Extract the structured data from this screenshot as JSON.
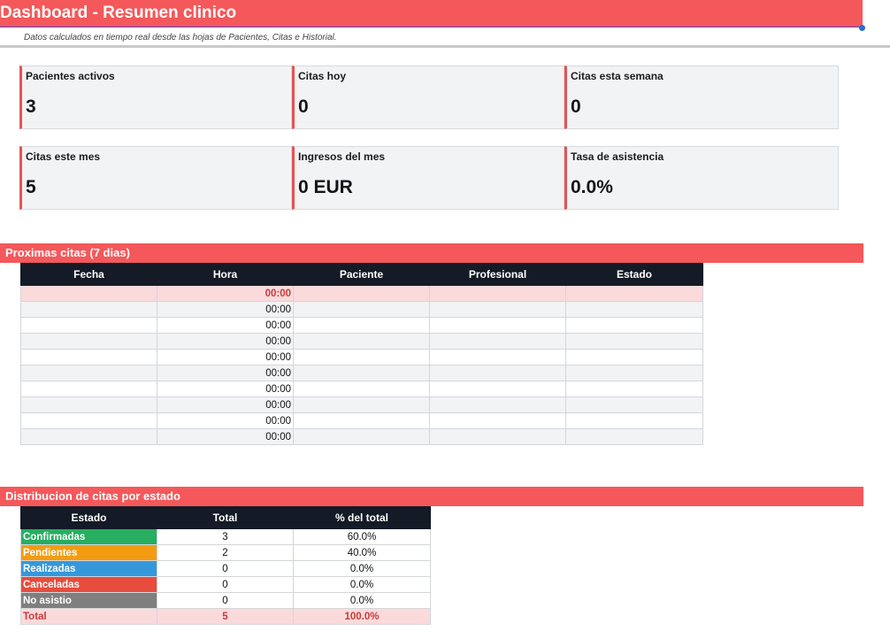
{
  "header": {
    "title": "Dashboard - Resumen clinico",
    "subtitle": "Datos calculados en tiempo real desde las hojas de Pacientes, Citas e Historial."
  },
  "kpis": [
    {
      "label": "Pacientes activos",
      "value": "3"
    },
    {
      "label": "Citas hoy",
      "value": "0"
    },
    {
      "label": "Citas esta semana",
      "value": "0"
    },
    {
      "label": "Citas este mes",
      "value": "5"
    },
    {
      "label": "Ingresos del mes",
      "value": "0 EUR"
    },
    {
      "label": "Tasa de asistencia",
      "value": "0.0%"
    }
  ],
  "upcoming": {
    "title": "Proximas citas (7 dias)",
    "columns": [
      "Fecha",
      "Hora",
      "Paciente",
      "Profesional",
      "Estado"
    ],
    "rows": [
      {
        "fecha": "",
        "hora": "00:00",
        "paciente": "",
        "profesional": "",
        "estado": ""
      },
      {
        "fecha": "",
        "hora": "00:00",
        "paciente": "",
        "profesional": "",
        "estado": ""
      },
      {
        "fecha": "",
        "hora": "00:00",
        "paciente": "",
        "profesional": "",
        "estado": ""
      },
      {
        "fecha": "",
        "hora": "00:00",
        "paciente": "",
        "profesional": "",
        "estado": ""
      },
      {
        "fecha": "",
        "hora": "00:00",
        "paciente": "",
        "profesional": "",
        "estado": ""
      },
      {
        "fecha": "",
        "hora": "00:00",
        "paciente": "",
        "profesional": "",
        "estado": ""
      },
      {
        "fecha": "",
        "hora": "00:00",
        "paciente": "",
        "profesional": "",
        "estado": ""
      },
      {
        "fecha": "",
        "hora": "00:00",
        "paciente": "",
        "profesional": "",
        "estado": ""
      },
      {
        "fecha": "",
        "hora": "00:00",
        "paciente": "",
        "profesional": "",
        "estado": ""
      },
      {
        "fecha": "",
        "hora": "00:00",
        "paciente": "",
        "profesional": "",
        "estado": ""
      }
    ]
  },
  "distribution": {
    "title": "Distribucion de citas por estado",
    "columns": [
      "Estado",
      "Total",
      "% del total"
    ],
    "rows": [
      {
        "estado": "Confirmadas",
        "total": "3",
        "pct": "60.0%",
        "color": "#27ae60"
      },
      {
        "estado": "Pendientes",
        "total": "2",
        "pct": "40.0%",
        "color": "#f39c12"
      },
      {
        "estado": "Realizadas",
        "total": "0",
        "pct": "0.0%",
        "color": "#3498db"
      },
      {
        "estado": "Canceladas",
        "total": "0",
        "pct": "0.0%",
        "color": "#e74c3c"
      },
      {
        "estado": "No asistio",
        "total": "0",
        "pct": "0.0%",
        "color": "#7f7f7f"
      }
    ],
    "total_row": {
      "estado": "Total",
      "total": "5",
      "pct": "100.0%"
    }
  },
  "colors": {
    "accent": "#f4585a",
    "header_dark": "#141a26",
    "highlight": "#fbdadb"
  }
}
